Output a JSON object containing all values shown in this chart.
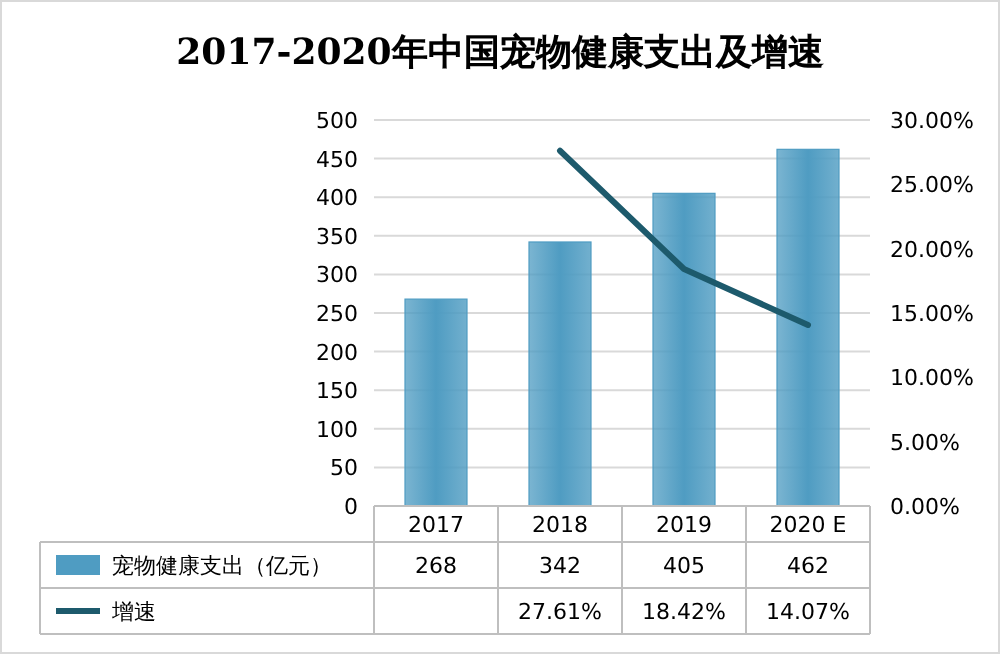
{
  "chart_data": {
    "type": "bar",
    "title": "2017-2020年中国宠物健康支出及增速",
    "categories": [
      "2017",
      "2018",
      "2019",
      "2020 E"
    ],
    "series": [
      {
        "name": "宠物健康支出（亿元）",
        "color": "#4f9cc2",
        "values": [
          268,
          342,
          405,
          462
        ],
        "value_labels": [
          "268",
          "342",
          "405",
          "462"
        ]
      },
      {
        "name": "增速",
        "type": "line",
        "axis": "y2",
        "color": "#1d5a6c",
        "values": [
          null,
          27.61,
          18.42,
          14.07
        ],
        "value_labels": [
          null,
          "27.61%",
          "18.42%",
          "14.07%"
        ]
      }
    ],
    "ylim": [
      0,
      500
    ],
    "yticks": [
      0,
      50,
      100,
      150,
      200,
      250,
      300,
      350,
      400,
      450,
      500
    ],
    "y2lim": [
      0,
      30
    ],
    "y2ticks": [
      {
        "value": 0,
        "label": "0.00%"
      },
      {
        "value": 5,
        "label": "5.00%"
      },
      {
        "value": 10,
        "label": "10.00%"
      },
      {
        "value": 15,
        "label": "15.00%"
      },
      {
        "value": 20,
        "label": "20.00%"
      },
      {
        "value": 25,
        "label": "25.00%"
      },
      {
        "value": 30,
        "label": "30.00%"
      }
    ],
    "grid": "y",
    "legend": "bottom"
  }
}
